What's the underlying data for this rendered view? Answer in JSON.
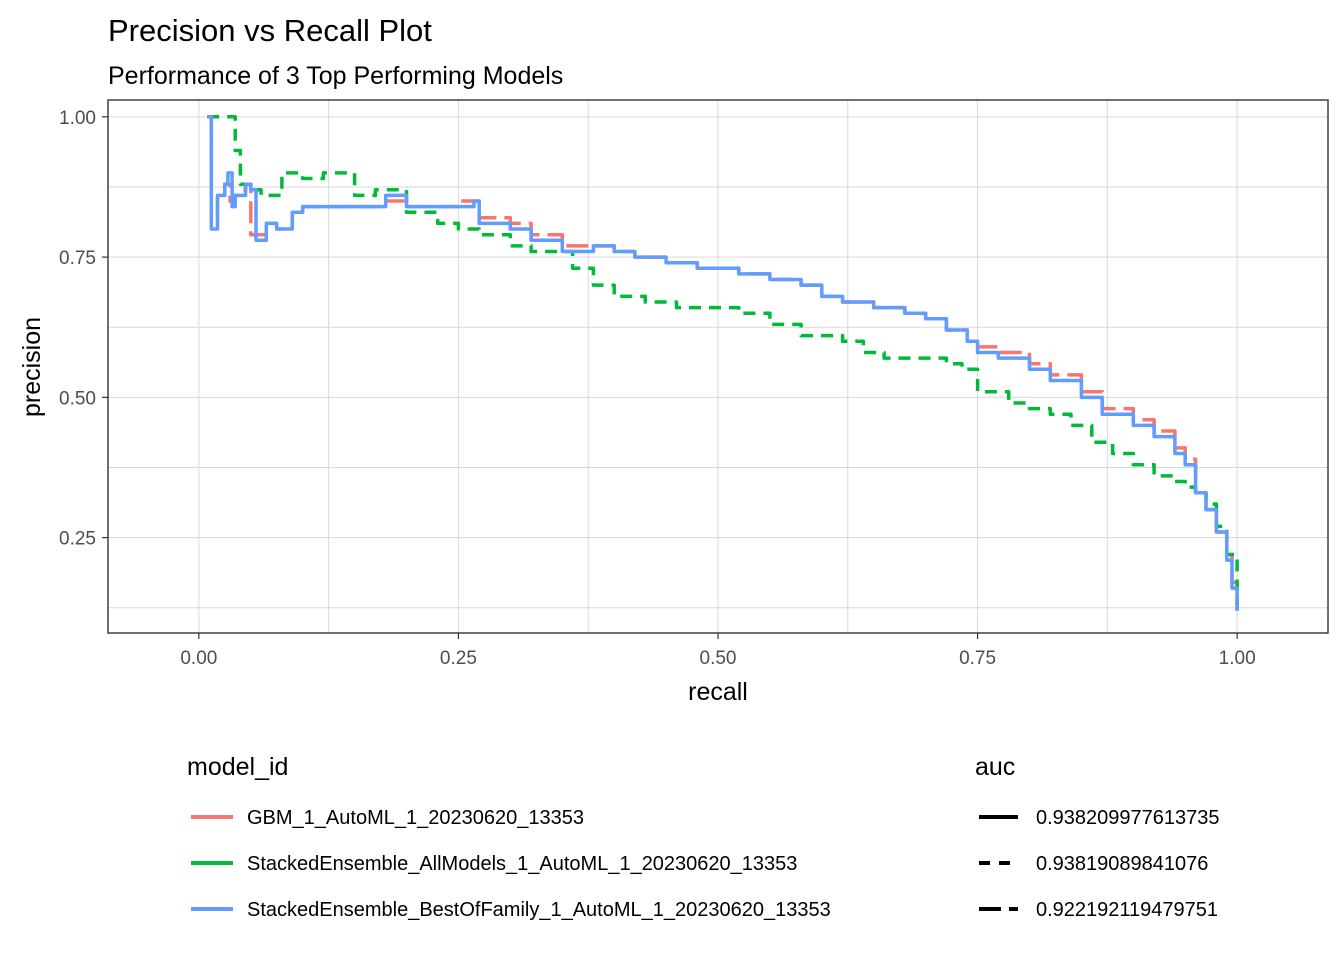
{
  "chart_data": {
    "type": "line",
    "title": "Precision vs Recall Plot",
    "subtitle": "Performance of 3 Top Performing Models",
    "xlabel": "recall",
    "ylabel": "precision",
    "xlim": [
      -0.0875,
      1.0875
    ],
    "ylim": [
      0.08,
      1.03
    ],
    "xticks": [
      "0.00",
      "0.25",
      "0.50",
      "0.75",
      "1.00"
    ],
    "xtick_values": [
      0,
      0.25,
      0.5,
      0.75,
      1.0
    ],
    "yticks": [
      "0.25",
      "0.50",
      "0.75",
      "1.00"
    ],
    "ytick_values": [
      0.25,
      0.5,
      0.75,
      1.0
    ],
    "grid": true,
    "legend_position": "bottom",
    "legends": [
      {
        "title": "model_id",
        "entries": [
          {
            "label": "GBM_1_AutoML_1_20230620_13353",
            "color": "#F8766D"
          },
          {
            "label": "StackedEnsemble_AllModels_1_AutoML_1_20230620_13353",
            "color": "#00BA38"
          },
          {
            "label": "StackedEnsemble_BestOfFamily_1_AutoML_1_20230620_13353",
            "color": "#619CFF"
          }
        ]
      },
      {
        "title": "auc",
        "entries": [
          {
            "label": "0.938209977613735",
            "linetype": "solid"
          },
          {
            "label": "0.93819089841076",
            "linetype": "dashed"
          },
          {
            "label": "0.922192119479751",
            "linetype": "longdash"
          }
        ]
      }
    ],
    "series": [
      {
        "name": "GBM_1_AutoML_1_20230620_13353",
        "color": "#F8766D",
        "linetype": "longdash",
        "x": [
          0.008,
          0.012,
          0.018,
          0.025,
          0.03,
          0.035,
          0.04,
          0.045,
          0.05,
          0.055,
          0.065,
          0.075,
          0.09,
          0.1,
          0.12,
          0.14,
          0.16,
          0.18,
          0.2,
          0.22,
          0.25,
          0.265,
          0.27,
          0.3,
          0.32,
          0.35,
          0.38,
          0.4,
          0.42,
          0.45,
          0.48,
          0.5,
          0.52,
          0.55,
          0.58,
          0.6,
          0.62,
          0.65,
          0.68,
          0.7,
          0.72,
          0.74,
          0.75,
          0.77,
          0.8,
          0.82,
          0.85,
          0.87,
          0.9,
          0.92,
          0.94,
          0.95,
          0.96,
          0.97,
          0.98,
          0.99,
          0.995,
          1.0
        ],
        "y": [
          1.0,
          0.81,
          0.86,
          0.88,
          0.85,
          0.86,
          0.87,
          0.88,
          0.79,
          0.79,
          0.81,
          0.8,
          0.83,
          0.84,
          0.84,
          0.84,
          0.84,
          0.85,
          0.84,
          0.84,
          0.85,
          0.85,
          0.82,
          0.81,
          0.79,
          0.77,
          0.77,
          0.76,
          0.75,
          0.74,
          0.73,
          0.73,
          0.72,
          0.71,
          0.7,
          0.68,
          0.67,
          0.66,
          0.65,
          0.64,
          0.62,
          0.6,
          0.59,
          0.58,
          0.56,
          0.54,
          0.51,
          0.48,
          0.46,
          0.44,
          0.41,
          0.39,
          0.33,
          0.3,
          0.26,
          0.22,
          0.17,
          0.13
        ]
      },
      {
        "name": "StackedEnsemble_AllModels_1_AutoML_1_20230620_13353",
        "color": "#00BA38",
        "linetype": "dashed",
        "x": [
          0.008,
          0.01,
          0.02,
          0.03,
          0.035,
          0.04,
          0.05,
          0.06,
          0.08,
          0.1,
          0.12,
          0.135,
          0.15,
          0.17,
          0.2,
          0.23,
          0.25,
          0.27,
          0.3,
          0.32,
          0.34,
          0.36,
          0.38,
          0.4,
          0.43,
          0.46,
          0.5,
          0.52,
          0.55,
          0.58,
          0.6,
          0.62,
          0.64,
          0.66,
          0.68,
          0.7,
          0.72,
          0.735,
          0.75,
          0.78,
          0.8,
          0.82,
          0.84,
          0.86,
          0.88,
          0.9,
          0.92,
          0.94,
          0.95,
          0.96,
          0.97,
          0.98,
          0.99,
          1.0
        ],
        "y": [
          1.0,
          1.0,
          1.0,
          1.0,
          0.94,
          0.88,
          0.87,
          0.86,
          0.9,
          0.89,
          0.9,
          0.9,
          0.86,
          0.87,
          0.83,
          0.81,
          0.8,
          0.79,
          0.77,
          0.76,
          0.76,
          0.73,
          0.7,
          0.68,
          0.67,
          0.66,
          0.66,
          0.65,
          0.63,
          0.61,
          0.61,
          0.6,
          0.58,
          0.57,
          0.57,
          0.57,
          0.56,
          0.55,
          0.51,
          0.49,
          0.48,
          0.47,
          0.45,
          0.42,
          0.4,
          0.38,
          0.36,
          0.35,
          0.34,
          0.33,
          0.31,
          0.27,
          0.22,
          0.12
        ]
      },
      {
        "name": "StackedEnsemble_BestOfFamily_1_AutoML_1_20230620_13353",
        "color": "#619CFF",
        "linetype": "solid",
        "x": [
          0.008,
          0.012,
          0.018,
          0.025,
          0.028,
          0.032,
          0.035,
          0.04,
          0.045,
          0.05,
          0.055,
          0.065,
          0.075,
          0.09,
          0.1,
          0.12,
          0.14,
          0.16,
          0.18,
          0.2,
          0.22,
          0.25,
          0.265,
          0.27,
          0.3,
          0.32,
          0.35,
          0.38,
          0.4,
          0.42,
          0.45,
          0.48,
          0.5,
          0.52,
          0.55,
          0.58,
          0.6,
          0.62,
          0.65,
          0.68,
          0.7,
          0.72,
          0.74,
          0.75,
          0.77,
          0.8,
          0.82,
          0.85,
          0.87,
          0.9,
          0.92,
          0.94,
          0.95,
          0.96,
          0.97,
          0.98,
          0.99,
          0.995,
          1.0
        ],
        "y": [
          1.0,
          0.8,
          0.86,
          0.88,
          0.9,
          0.84,
          0.86,
          0.86,
          0.88,
          0.87,
          0.78,
          0.81,
          0.8,
          0.83,
          0.84,
          0.84,
          0.84,
          0.84,
          0.86,
          0.84,
          0.84,
          0.84,
          0.85,
          0.81,
          0.8,
          0.78,
          0.76,
          0.77,
          0.76,
          0.75,
          0.74,
          0.73,
          0.73,
          0.72,
          0.71,
          0.7,
          0.68,
          0.67,
          0.66,
          0.65,
          0.64,
          0.62,
          0.6,
          0.58,
          0.57,
          0.55,
          0.53,
          0.5,
          0.47,
          0.45,
          0.43,
          0.4,
          0.38,
          0.33,
          0.3,
          0.26,
          0.21,
          0.16,
          0.12
        ]
      }
    ]
  }
}
